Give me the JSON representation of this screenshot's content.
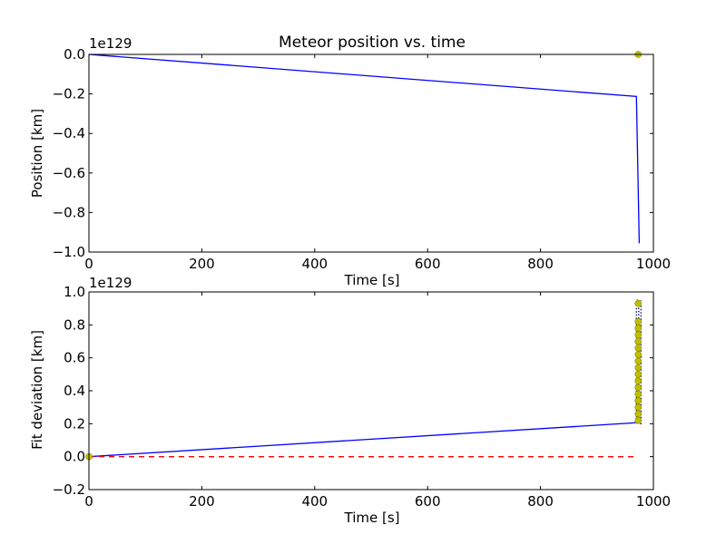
{
  "chart_data": [
    {
      "type": "line",
      "title": "Meteor position vs. time",
      "xlabel": "Time [s]",
      "ylabel": "Position [km]",
      "y_multiplier_label": "1e129",
      "xlim": [
        0,
        1000
      ],
      "ylim": [
        -1.0,
        0.0
      ],
      "x_ticks": [
        0,
        200,
        400,
        600,
        800,
        1000
      ],
      "y_ticks": [
        -1.0,
        -0.8,
        -0.6,
        -0.4,
        -0.2,
        0.0
      ],
      "grid": false,
      "series": [
        {
          "color": "#0000ff",
          "style": "solid",
          "x": [
            0,
            970,
            975
          ],
          "y": [
            0.0,
            -0.213,
            -0.955
          ]
        },
        {
          "color": "#bfbf00",
          "style": "marker",
          "x": [
            973
          ],
          "y": [
            0.0
          ]
        }
      ]
    },
    {
      "type": "line",
      "xlabel": "Time [s]",
      "ylabel": "Fit deviation [km]",
      "y_multiplier_label": "1e129",
      "xlim": [
        0,
        1000
      ],
      "ylim": [
        -0.2,
        1.0
      ],
      "x_ticks": [
        0,
        200,
        400,
        600,
        800,
        1000
      ],
      "y_ticks": [
        -0.2,
        0.0,
        0.2,
        0.4,
        0.6,
        0.8,
        1.0
      ],
      "grid": false,
      "series": [
        {
          "color": "#0000ff",
          "style": "solid",
          "x": [
            0,
            966,
            973
          ],
          "y": [
            0.0,
            0.205,
            0.215
          ]
        },
        {
          "color": "#ff0000",
          "style": "dashed",
          "x": [
            0,
            970
          ],
          "y": [
            0.0,
            0.0
          ]
        },
        {
          "color": "#000080",
          "style": "dotted",
          "x": [
            970,
            970,
            974,
            974,
            978,
            978
          ],
          "y": [
            0.2,
            0.95,
            0.95,
            0.2,
            0.2,
            0.95
          ]
        },
        {
          "color": "#bfbf00",
          "style": "marker",
          "x": [
            0,
            973,
            973,
            973,
            973,
            973,
            973,
            973,
            973,
            973,
            973,
            973,
            973,
            973,
            973,
            973,
            973,
            973
          ],
          "y": [
            0.0,
            0.22,
            0.26,
            0.3,
            0.34,
            0.38,
            0.42,
            0.46,
            0.5,
            0.54,
            0.58,
            0.62,
            0.66,
            0.7,
            0.74,
            0.78,
            0.82,
            0.93
          ]
        }
      ]
    }
  ]
}
